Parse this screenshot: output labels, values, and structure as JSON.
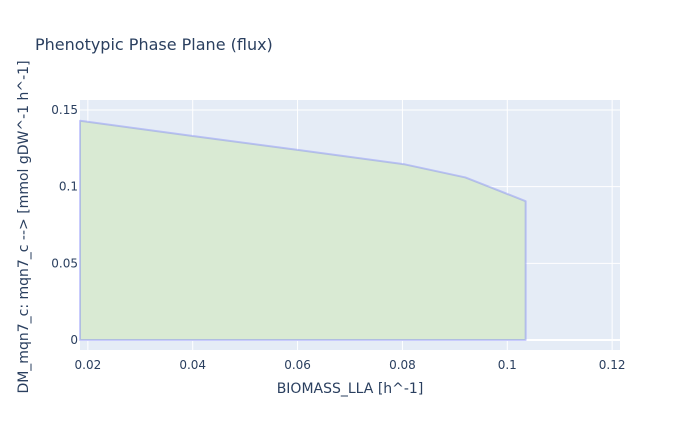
{
  "chart_data": {
    "type": "area",
    "title": "Phenotypic Phase Plane (flux)",
    "xlabel": "BIOMASS_LLA [h^-1]",
    "ylabel": "DM_mqn7_c: mqn7_c -->  [mmol gDW^-1 h^-1]",
    "xlim": [
      0.0185,
      0.1215
    ],
    "ylim": [
      -0.0065,
      0.1565
    ],
    "x_ticks": [
      {
        "value": 0.02,
        "label": "0.02"
      },
      {
        "value": 0.04,
        "label": "0.04"
      },
      {
        "value": 0.06,
        "label": "0.06"
      },
      {
        "value": 0.08,
        "label": "0.08"
      },
      {
        "value": 0.1,
        "label": "0.1"
      },
      {
        "value": 0.12,
        "label": "0.12"
      }
    ],
    "y_ticks": [
      {
        "value": 0,
        "label": "0"
      },
      {
        "value": 0.05,
        "label": "0.05"
      },
      {
        "value": 0.1,
        "label": "0.1"
      },
      {
        "value": 0.15,
        "label": "0.15"
      }
    ],
    "grid": true,
    "series": [
      {
        "type": "area",
        "color": "#636efa",
        "fill_color": "#d9ead3",
        "x": [
          0.0185,
          0.04,
          0.06,
          0.0805,
          0.092,
          0.0965,
          0.1035,
          0.1035,
          0.0185
        ],
        "y": [
          0.143,
          0.133,
          0.124,
          0.1145,
          0.106,
          0.1,
          0.0905,
          0.0,
          0.0
        ]
      }
    ]
  }
}
